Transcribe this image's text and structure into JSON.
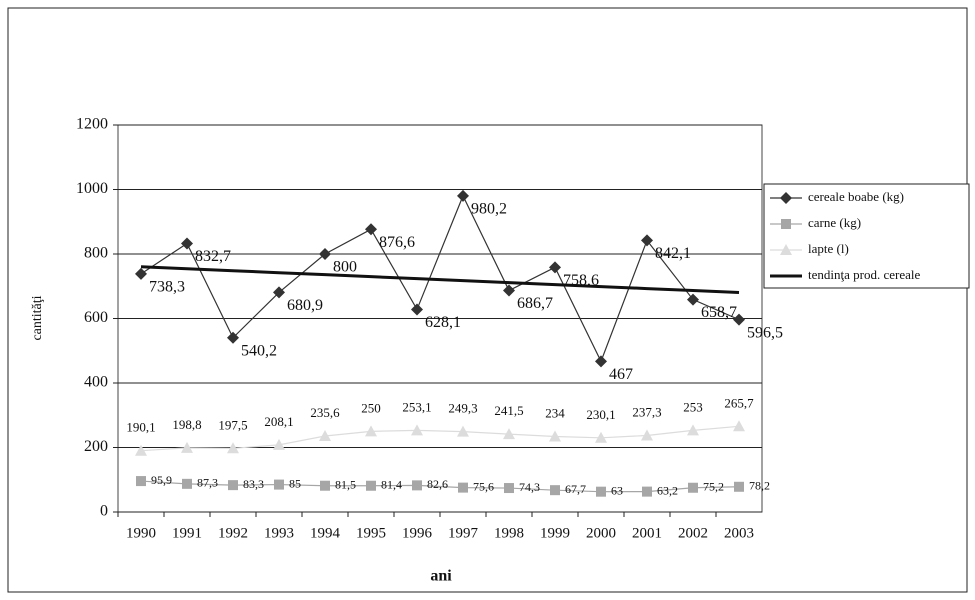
{
  "chart_data": {
    "type": "line",
    "x_label": "ani",
    "y_label": "cantităţi",
    "categories": [
      "1990",
      "1991",
      "1992",
      "1993",
      "1994",
      "1995",
      "1996",
      "1997",
      "1998",
      "1999",
      "2000",
      "2001",
      "2002",
      "2003"
    ],
    "ylim": [
      0,
      1200
    ],
    "yticks": [
      0,
      200,
      400,
      600,
      800,
      1000,
      1200
    ],
    "grid": true,
    "legend": "right",
    "series": [
      {
        "name": "cereale boabe (kg)",
        "color": "#333333",
        "marker": "diamond",
        "values": [
          738.3,
          832.7,
          540.2,
          680.9,
          800,
          876.6,
          628.1,
          980.2,
          686.7,
          758.6,
          467,
          842.1,
          658.7,
          596.5
        ],
        "value_labels": [
          "738,3",
          "832,7",
          "540,2",
          "680,9",
          "800",
          "876,6",
          "628,1",
          "980,2",
          "686,7",
          "758,6",
          "467",
          "842,1",
          "658,7",
          "596,5"
        ]
      },
      {
        "name": "carne (kg)",
        "color": "#a6a6a6",
        "marker": "square",
        "values": [
          95.9,
          87.3,
          83.3,
          85,
          81.5,
          81.4,
          82.6,
          75.6,
          74.3,
          67.7,
          63,
          63.2,
          75.2,
          78.2
        ],
        "value_labels": [
          "95,9",
          "87,3",
          "83,3",
          "85",
          "81,5",
          "81,4",
          "82,6",
          "75,6",
          "74,3",
          "67,7",
          "63",
          "63,2",
          "75,2",
          "78,2"
        ]
      },
      {
        "name": "lapte (l)",
        "color": "#dcdcdc",
        "marker": "triangle",
        "values": [
          190.1,
          198.8,
          197.5,
          208.1,
          235.6,
          250,
          253.1,
          249.3,
          241.5,
          234,
          230.1,
          237.3,
          253,
          265.7
        ],
        "value_labels": [
          "190,1",
          "198,8",
          "197,5",
          "208,1",
          "235,6",
          "250",
          "253,1",
          "249,3",
          "241,5",
          "234",
          "230,1",
          "237,3",
          "253",
          "265,7"
        ]
      },
      {
        "name": "tendinţa prod. cereale",
        "color": "#111111",
        "marker": "none",
        "values": [
          760.5,
          754.3,
          748.2,
          742.0,
          735.9,
          729.7,
          723.6,
          717.4,
          711.3,
          705.1,
          699.0,
          692.8,
          686.7,
          680.5
        ]
      }
    ]
  }
}
